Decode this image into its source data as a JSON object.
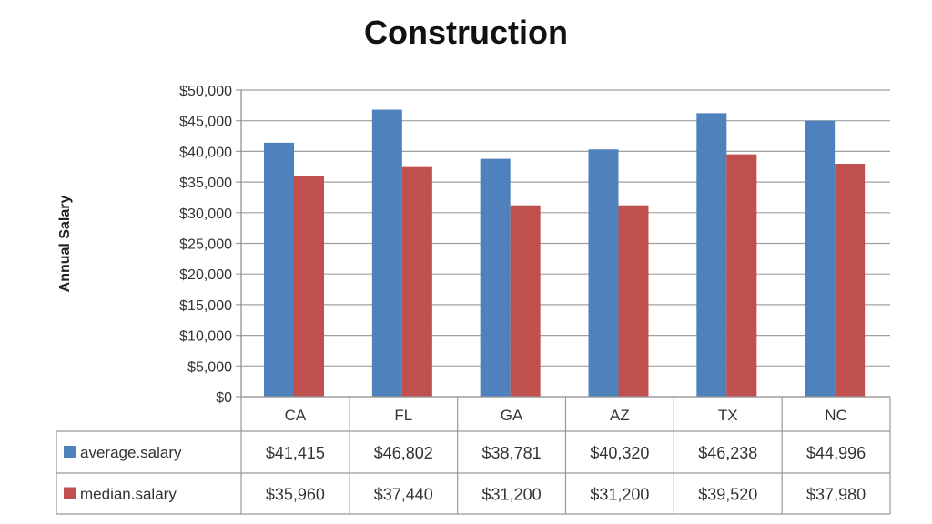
{
  "chart_data": {
    "type": "bar",
    "title": "Construction",
    "xlabel": "",
    "ylabel": "Annual Salary",
    "categories": [
      "CA",
      "FL",
      "GA",
      "AZ",
      "TX",
      "NC"
    ],
    "series": [
      {
        "name": "average.salary",
        "color": "#4F81BD",
        "values": [
          41415,
          46802,
          38781,
          40320,
          46238,
          44996
        ],
        "labels": [
          "$41,415",
          "$46,802",
          "$38,781",
          "$40,320",
          "$46,238",
          "$44,996"
        ]
      },
      {
        "name": "median.salary",
        "color": "#C0504D",
        "values": [
          35960,
          37440,
          31200,
          31200,
          39520,
          37980
        ],
        "labels": [
          "$35,960",
          "$37,440",
          "$31,200",
          "$31,200",
          "$39,520",
          "$37,980"
        ]
      }
    ],
    "ylim": [
      0,
      50000
    ],
    "yticks": [
      0,
      5000,
      10000,
      15000,
      20000,
      25000,
      30000,
      35000,
      40000,
      45000,
      50000
    ],
    "ytick_labels": [
      "$0",
      "$5,000",
      "$10,000",
      "$15,000",
      "$20,000",
      "$25,000",
      "$30,000",
      "$35,000",
      "$40,000",
      "$45,000",
      "$50,000"
    ],
    "grid": true,
    "legend": "data-table"
  }
}
